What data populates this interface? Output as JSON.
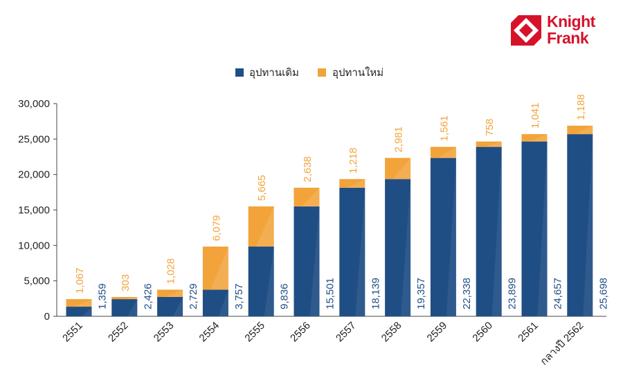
{
  "brand": {
    "line1": "Knight",
    "line2": "Frank",
    "color": "#d6122b"
  },
  "colors": {
    "existing": "#1f4e85",
    "new": "#f2a33a"
  },
  "chart_data": {
    "type": "bar",
    "stacked": true,
    "categories": [
      "2551",
      "2552",
      "2553",
      "2554",
      "2555",
      "2556",
      "2557",
      "2558",
      "2559",
      "2560",
      "2561",
      "กลางปี 2562"
    ],
    "series": [
      {
        "name": "อุปทานเดิม",
        "values": [
          1359,
          2426,
          2729,
          3757,
          9836,
          15501,
          18139,
          19357,
          22338,
          23899,
          24657,
          25698
        ],
        "labels": [
          "1,359",
          "2,426",
          "2,729",
          "3,757",
          "9,836",
          "15,501",
          "18,139",
          "19,357",
          "22,338",
          "23,899",
          "24,657",
          "25,698"
        ]
      },
      {
        "name": "อุปทานใหม่",
        "values": [
          1067,
          303,
          1028,
          6079,
          5665,
          2638,
          1218,
          2981,
          1561,
          758,
          1041,
          1188
        ],
        "labels": [
          "1,067",
          "303",
          "1,028",
          "6,079",
          "5,665",
          "2,638",
          "1,218",
          "2,981",
          "1,561",
          "758",
          "1,041",
          "1,188"
        ]
      }
    ],
    "yticks": [
      "0",
      "5,000",
      "10,000",
      "15,000",
      "20,000",
      "25,000",
      "30,000"
    ],
    "ytick_values": [
      0,
      5000,
      10000,
      15000,
      20000,
      25000,
      30000
    ],
    "ylim": [
      0,
      30000
    ],
    "legend_position": "top-center",
    "grid": false
  }
}
